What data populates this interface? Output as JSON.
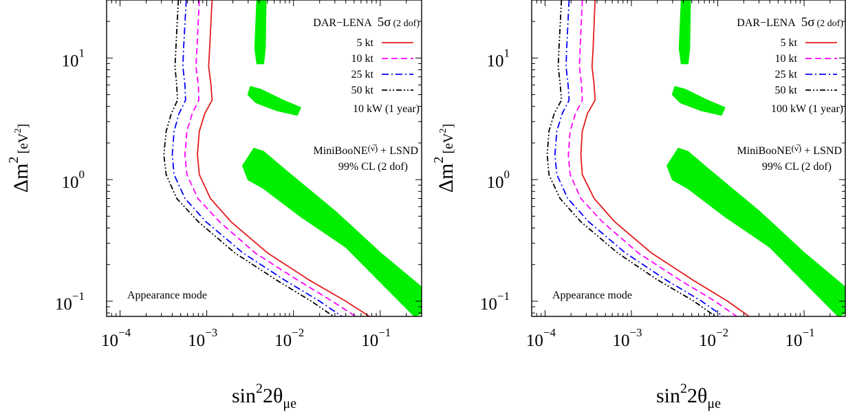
{
  "chart_data": [
    {
      "type": "line",
      "panel": "left",
      "xscale": "log",
      "yscale": "log",
      "xlim": [
        7e-05,
        0.3
      ],
      "ylim": [
        0.075,
        30
      ],
      "xlabel": {
        "main": "sin",
        "sup": "2",
        "rest": "2θ",
        "sub": "μe"
      },
      "ylabel": {
        "main": "Δm",
        "sup": "2",
        "unit": "[eV",
        "unit_sup": "2",
        "unit_end": "]"
      },
      "xticks": [
        {
          "v": 0.0001,
          "mant": "10",
          "exp": "−4"
        },
        {
          "v": 0.001,
          "mant": "10",
          "exp": "−3"
        },
        {
          "v": 0.01,
          "mant": "10",
          "exp": "−2"
        },
        {
          "v": 0.1,
          "mant": "10",
          "exp": "−1"
        }
      ],
      "yticks": [
        {
          "v": 0.1,
          "mant": "10",
          "exp": "−1"
        },
        {
          "v": 1,
          "mant": "10",
          "exp": "0"
        },
        {
          "v": 10,
          "mant": "10",
          "exp": "1"
        }
      ],
      "legend_title": {
        "label": "DAR−LENA",
        "sigma": "5σ",
        "dof": "(2 dof)"
      },
      "power_label": "10 kW (1 year)",
      "mode_label": "Appearance mode",
      "region_label": {
        "line1_a": "MiniBooNE",
        "line1_nu": "(ν̅)",
        "line1_b": " + LSND",
        "line2": "99% CL (2 dof)"
      },
      "series": [
        {
          "name": "5 kt",
          "color": "#e41a1c",
          "dash": "solid",
          "points": [
            [
              0.00115,
              30
            ],
            [
              0.00108,
              12
            ],
            [
              0.00105,
              8.5
            ],
            [
              0.00112,
              6
            ],
            [
              0.00115,
              4.5
            ],
            [
              0.00095,
              3.5
            ],
            [
              0.00082,
              2.5
            ],
            [
              0.00078,
              1.6
            ],
            [
              0.00082,
              1.1
            ],
            [
              0.0011,
              0.7
            ],
            [
              0.0019,
              0.45
            ],
            [
              0.005,
              0.25
            ],
            [
              0.015,
              0.15
            ],
            [
              0.04,
              0.1
            ],
            [
              0.075,
              0.075
            ]
          ]
        },
        {
          "name": "10 kt",
          "color": "#ff00ff",
          "dash": "dashed",
          "points": [
            [
              0.00082,
              30
            ],
            [
              0.00077,
              12
            ],
            [
              0.00075,
              8.5
            ],
            [
              0.0008,
              6
            ],
            [
              0.00081,
              4.5
            ],
            [
              0.00068,
              3.5
            ],
            [
              0.00059,
              2.5
            ],
            [
              0.00056,
              1.6
            ],
            [
              0.00059,
              1.1
            ],
            [
              0.00079,
              0.7
            ],
            [
              0.0014,
              0.45
            ],
            [
              0.0036,
              0.25
            ],
            [
              0.011,
              0.15
            ],
            [
              0.028,
              0.1
            ],
            [
              0.052,
              0.075
            ]
          ]
        },
        {
          "name": "25 kt",
          "color": "#0000ff",
          "dash": "dashdot",
          "points": [
            [
              0.00058,
              30
            ],
            [
              0.00054,
              12
            ],
            [
              0.00053,
              8.5
            ],
            [
              0.00056,
              6
            ],
            [
              0.00057,
              4.5
            ],
            [
              0.00048,
              3.5
            ],
            [
              0.00042,
              2.5
            ],
            [
              0.0004,
              1.6
            ],
            [
              0.00042,
              1.1
            ],
            [
              0.00056,
              0.7
            ],
            [
              0.00098,
              0.45
            ],
            [
              0.0026,
              0.25
            ],
            [
              0.0078,
              0.15
            ],
            [
              0.02,
              0.1
            ],
            [
              0.036,
              0.075
            ]
          ]
        },
        {
          "name": "50 kt",
          "color": "#000000",
          "dash": "dashdotdot",
          "points": [
            [
              0.00047,
              30
            ],
            [
              0.00044,
              12
            ],
            [
              0.00043,
              8.5
            ],
            [
              0.00045,
              6
            ],
            [
              0.00046,
              4.5
            ],
            [
              0.00039,
              3.5
            ],
            [
              0.00034,
              2.5
            ],
            [
              0.00032,
              1.6
            ],
            [
              0.00034,
              1.1
            ],
            [
              0.00045,
              0.7
            ],
            [
              0.0008,
              0.45
            ],
            [
              0.0021,
              0.25
            ],
            [
              0.0063,
              0.15
            ],
            [
              0.016,
              0.1
            ],
            [
              0.029,
              0.075
            ]
          ]
        }
      ]
    },
    {
      "type": "line",
      "panel": "right",
      "xscale": "log",
      "yscale": "log",
      "xlim": [
        7e-05,
        0.3
      ],
      "ylim": [
        0.075,
        30
      ],
      "xlabel": {
        "main": "sin",
        "sup": "2",
        "rest": "2θ",
        "sub": "μe"
      },
      "ylabel": {
        "main": "Δm",
        "sup": "2",
        "unit": "[eV",
        "unit_sup": "2",
        "unit_end": "]"
      },
      "xticks": [
        {
          "v": 0.0001,
          "mant": "10",
          "exp": "−4"
        },
        {
          "v": 0.001,
          "mant": "10",
          "exp": "−3"
        },
        {
          "v": 0.01,
          "mant": "10",
          "exp": "−2"
        },
        {
          "v": 0.1,
          "mant": "10",
          "exp": "−1"
        }
      ],
      "yticks": [
        {
          "v": 0.1,
          "mant": "10",
          "exp": "−1"
        },
        {
          "v": 1,
          "mant": "10",
          "exp": "0"
        },
        {
          "v": 10,
          "mant": "10",
          "exp": "1"
        }
      ],
      "legend_title": {
        "label": "DAR−LENA",
        "sigma": "5σ",
        "dof": "(2 dof)"
      },
      "power_label": "100 kW (1 year)",
      "mode_label": "Appearance mode",
      "region_label": {
        "line1_a": "MiniBooNE",
        "line1_nu": "(ν̅)",
        "line1_b": " + LSND",
        "line2": "99% CL (2 dof)"
      },
      "series": [
        {
          "name": "5 kt",
          "color": "#e41a1c",
          "dash": "solid",
          "points": [
            [
              0.00038,
              30
            ],
            [
              0.00036,
              12
            ],
            [
              0.00035,
              8.5
            ],
            [
              0.00037,
              6
            ],
            [
              0.00038,
              4.5
            ],
            [
              0.00031,
              3.5
            ],
            [
              0.00027,
              2.5
            ],
            [
              0.00026,
              1.6
            ],
            [
              0.00027,
              1.1
            ],
            [
              0.00037,
              0.7
            ],
            [
              0.00064,
              0.45
            ],
            [
              0.0017,
              0.25
            ],
            [
              0.0051,
              0.15
            ],
            [
              0.013,
              0.1
            ],
            [
              0.023,
              0.075
            ]
          ]
        },
        {
          "name": "10 kt",
          "color": "#ff00ff",
          "dash": "dashed",
          "points": [
            [
              0.00027,
              30
            ],
            [
              0.000255,
              12
            ],
            [
              0.00025,
              8.5
            ],
            [
              0.000265,
              6
            ],
            [
              0.00027,
              4.5
            ],
            [
              0.000225,
              3.5
            ],
            [
              0.000195,
              2.5
            ],
            [
              0.000186,
              1.6
            ],
            [
              0.000195,
              1.1
            ],
            [
              0.00026,
              0.7
            ],
            [
              0.00046,
              0.45
            ],
            [
              0.0012,
              0.25
            ],
            [
              0.0036,
              0.15
            ],
            [
              0.0093,
              0.1
            ],
            [
              0.0165,
              0.075
            ]
          ]
        },
        {
          "name": "25 kt",
          "color": "#0000ff",
          "dash": "dashdot",
          "points": [
            [
              0.00019,
              30
            ],
            [
              0.000178,
              12
            ],
            [
              0.000175,
              8.5
            ],
            [
              0.000185,
              6
            ],
            [
              0.00019,
              4.5
            ],
            [
              0.000158,
              3.5
            ],
            [
              0.000137,
              2.5
            ],
            [
              0.00013,
              1.6
            ],
            [
              0.000137,
              1.1
            ],
            [
              0.000183,
              0.7
            ],
            [
              0.00032,
              0.45
            ],
            [
              0.00085,
              0.25
            ],
            [
              0.0025,
              0.15
            ],
            [
              0.0065,
              0.1
            ],
            [
              0.0116,
              0.075
            ]
          ]
        },
        {
          "name": "50 kt",
          "color": "#000000",
          "dash": "dashdotdot",
          "points": [
            [
              0.000155,
              30
            ],
            [
              0.000145,
              12
            ],
            [
              0.000142,
              8.5
            ],
            [
              0.00015,
              6
            ],
            [
              0.000155,
              4.5
            ],
            [
              0.000128,
              3.5
            ],
            [
              0.000111,
              2.5
            ],
            [
              0.000106,
              1.6
            ],
            [
              0.000111,
              1.1
            ],
            [
              0.000149,
              0.7
            ],
            [
              0.00026,
              0.45
            ],
            [
              0.00069,
              0.25
            ],
            [
              0.002,
              0.15
            ],
            [
              0.0053,
              0.1
            ],
            [
              0.0094,
              0.075
            ]
          ]
        }
      ]
    }
  ],
  "allowed_region": {
    "color": "#00ee00",
    "blobs": [
      {
        "part": "top-strip",
        "points": [
          [
            0.0038,
            30
          ],
          [
            0.0048,
            30
          ],
          [
            0.0047,
            12
          ],
          [
            0.0045,
            9
          ],
          [
            0.0038,
            9
          ],
          [
            0.0036,
            12
          ]
        ]
      },
      {
        "part": "middle-island",
        "points": [
          [
            0.0032,
            5.8
          ],
          [
            0.0042,
            5.5
          ],
          [
            0.0075,
            4.5
          ],
          [
            0.012,
            3.9
          ],
          [
            0.011,
            3.4
          ],
          [
            0.0065,
            3.7
          ],
          [
            0.0037,
            4.3
          ],
          [
            0.003,
            5.0
          ]
        ]
      },
      {
        "part": "main-band",
        "points": [
          [
            0.0026,
            1.3
          ],
          [
            0.0035,
            1.8
          ],
          [
            0.0045,
            1.7
          ],
          [
            0.008,
            1.2
          ],
          [
            0.03,
            0.55
          ],
          [
            0.1,
            0.25
          ],
          [
            0.3,
            0.13
          ],
          [
            0.3,
            0.08
          ],
          [
            0.25,
            0.075
          ],
          [
            0.13,
            0.12
          ],
          [
            0.04,
            0.28
          ],
          [
            0.012,
            0.5
          ],
          [
            0.0045,
            0.85
          ],
          [
            0.003,
            1.0
          ]
        ]
      }
    ]
  }
}
